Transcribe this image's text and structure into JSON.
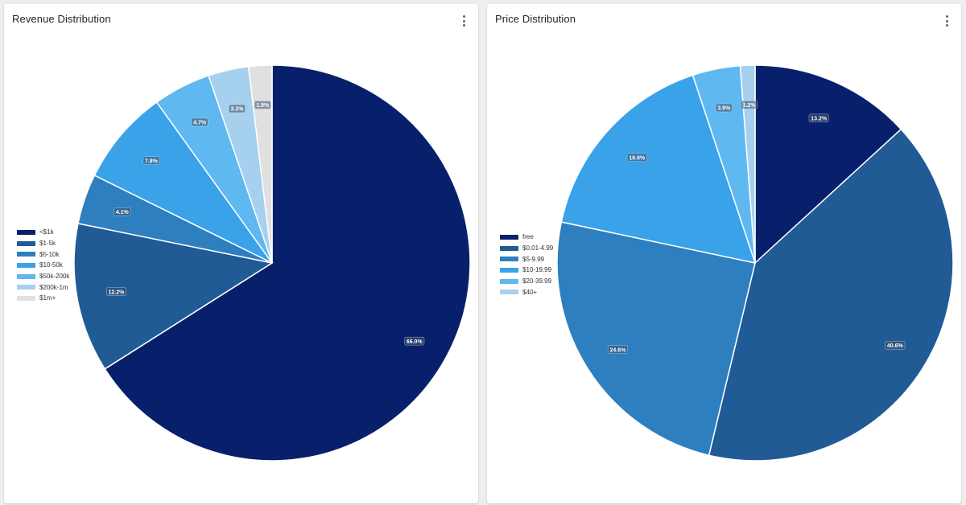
{
  "charts": [
    {
      "id": "revenue",
      "title": "Revenue Distribution",
      "chart_data": {
        "type": "pie",
        "title": "Revenue Distribution",
        "categories": [
          "<$1k",
          "$1-5k",
          "$5-10k",
          "$10-50k",
          "$50k-200k",
          "$200k-1m",
          "$1m+"
        ],
        "values": [
          66.0,
          12.2,
          4.1,
          7.8,
          4.7,
          3.3,
          1.9
        ],
        "labels": [
          "66.0%",
          "12.2%",
          "4.1%",
          "7.8%",
          "4.7%",
          "3.3%",
          "1.9%"
        ],
        "colors": [
          "#08206b",
          "#215b96",
          "#2e7fbf",
          "#3aa2e9",
          "#5fb8ef",
          "#a5d1ef",
          "#e0e0e0"
        ],
        "legend_position": "left"
      }
    },
    {
      "id": "price",
      "title": "Price Distribution",
      "chart_data": {
        "type": "pie",
        "title": "Price Distribution",
        "categories": [
          "free",
          "$0.01-4.99",
          "$5-9.99",
          "$10-19.99",
          "$20-39.99",
          "$40+"
        ],
        "values": [
          13.2,
          40.6,
          24.6,
          16.6,
          3.9,
          1.2
        ],
        "labels": [
          "13.2%",
          "40.6%",
          "24.6%",
          "16.6%",
          "3.9%",
          "1.2%"
        ],
        "colors": [
          "#08206b",
          "#215b96",
          "#2e7fbf",
          "#3aa2e9",
          "#5fb8ef",
          "#a5d1ef"
        ],
        "legend_position": "left"
      }
    }
  ]
}
